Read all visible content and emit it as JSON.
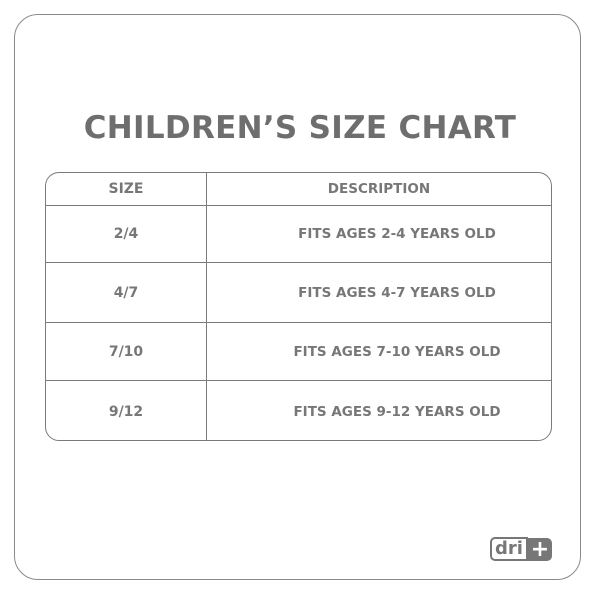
{
  "title": "CHILDREN’S SIZE CHART",
  "table": {
    "headers": [
      "SIZE",
      "DESCRIPTION"
    ],
    "rows": [
      [
        "2/4",
        "FITS AGES 2-4 YEARS OLD"
      ],
      [
        "4/7",
        "FITS AGES 4-7 YEARS OLD"
      ],
      [
        "7/10",
        "FITS AGES 7-10 YEARS OLD"
      ],
      [
        "9/12",
        "FITS AGES 9-12 YEARS OLD"
      ]
    ]
  },
  "logo": {
    "text": "dri",
    "symbol": "+"
  }
}
